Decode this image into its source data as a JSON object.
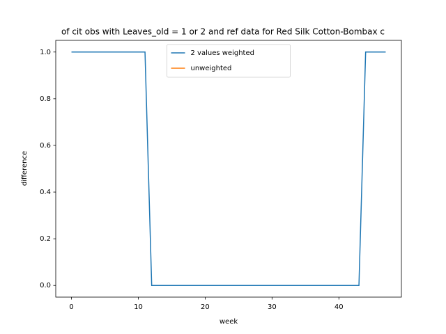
{
  "chart_data": {
    "type": "line",
    "title": "of cit obs with Leaves_old = 1 or 2 and ref data for Red Silk Cotton-Bombax c",
    "xlabel": "week",
    "ylabel": "difference",
    "x": [
      0,
      1,
      2,
      3,
      4,
      5,
      6,
      7,
      8,
      9,
      10,
      11,
      12,
      13,
      14,
      15,
      16,
      17,
      18,
      19,
      20,
      21,
      22,
      23,
      24,
      25,
      26,
      27,
      28,
      29,
      30,
      31,
      32,
      33,
      34,
      35,
      36,
      37,
      38,
      39,
      40,
      41,
      42,
      43,
      44,
      45,
      46,
      47
    ],
    "series": [
      {
        "name": "2 values weighted",
        "color": "#1f77b4",
        "values": [
          1,
          1,
          1,
          1,
          1,
          1,
          1,
          1,
          1,
          1,
          1,
          1,
          0,
          0,
          0,
          0,
          0,
          0,
          0,
          0,
          0,
          0,
          0,
          0,
          0,
          0,
          0,
          0,
          0,
          0,
          0,
          0,
          0,
          0,
          0,
          0,
          0,
          0,
          0,
          0,
          0,
          0,
          0,
          0,
          1,
          1,
          1,
          1
        ]
      },
      {
        "name": "unweighted",
        "color": "#ff7f0e",
        "values": [
          null,
          null,
          null,
          null,
          null,
          null,
          null,
          null,
          null,
          null,
          null,
          null,
          null,
          null,
          null,
          null,
          null,
          null,
          null,
          null,
          null,
          null,
          null,
          null,
          null,
          null,
          null,
          null,
          null,
          null,
          null,
          null,
          null,
          null,
          null,
          null,
          null,
          null,
          null,
          null,
          null,
          null,
          null,
          null,
          null,
          null,
          null,
          null
        ]
      }
    ],
    "xlim": [
      -2.35,
      49.35
    ],
    "ylim": [
      -0.05,
      1.05
    ],
    "xticks": [
      0,
      10,
      20,
      30,
      40
    ],
    "yticks": [
      {
        "value": 0,
        "label": "0.0"
      },
      {
        "value": 0.2,
        "label": "0.2"
      },
      {
        "value": 0.4,
        "label": "0.4"
      },
      {
        "value": 0.6,
        "label": "0.6"
      },
      {
        "value": 0.8,
        "label": "0.8"
      },
      {
        "value": 1,
        "label": "1.0"
      }
    ],
    "legend": "upper center"
  }
}
